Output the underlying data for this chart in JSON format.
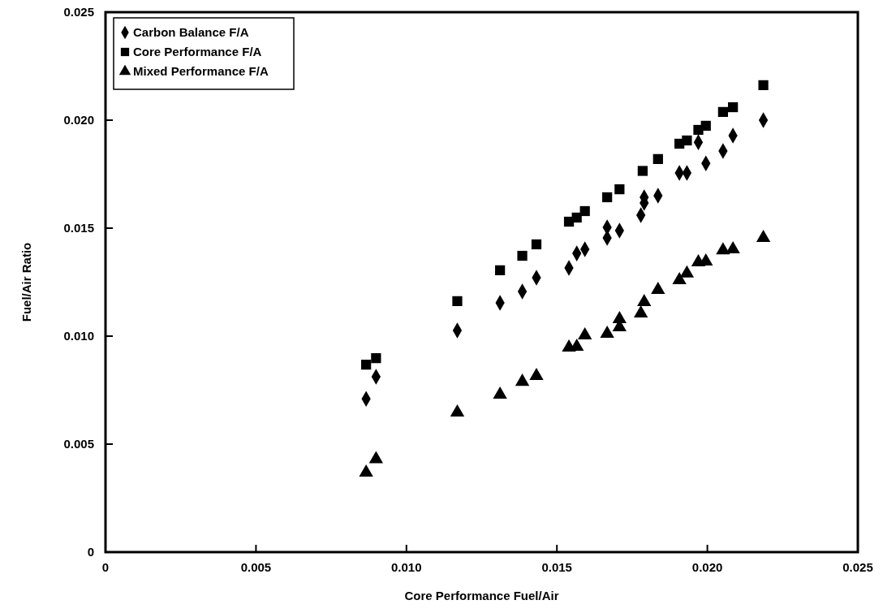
{
  "chart_data": {
    "type": "scatter",
    "xlabel": "Core Performance Fuel/Air",
    "ylabel": "Fuel/Air Ratio",
    "xlim": [
      0,
      0.025
    ],
    "ylim": [
      0,
      0.025
    ],
    "xticks": [
      0,
      {
        "value": 0.005,
        "label": "0.005"
      },
      {
        "value": 0.01,
        "label": "0.010"
      },
      {
        "value": 0.015,
        "label": "0.015"
      },
      {
        "value": 0.02,
        "label": "0.020"
      },
      {
        "value": 0.025,
        "label": "0.025"
      }
    ],
    "yticks": [
      0,
      {
        "value": 0.005,
        "label": "0.005"
      },
      {
        "value": 0.01,
        "label": "0.010"
      },
      {
        "value": 0.015,
        "label": "0.015"
      },
      {
        "value": 0.02,
        "label": "0.020"
      },
      {
        "value": 0.025,
        "label": "0.025"
      }
    ],
    "grid": false,
    "legend": "top left",
    "series": [
      {
        "name": "Carbon Balance F/A",
        "color": "#000000",
        "marker": "diamond",
        "x": [
          0.00866,
          0.00899,
          0.01169,
          0.01311,
          0.01385,
          0.01432,
          0.0154,
          0.01566,
          0.01593,
          0.01667,
          0.01667,
          0.01708,
          0.01779,
          0.0179,
          0.0179,
          0.01836,
          0.01907,
          0.01932,
          0.0197,
          0.01995,
          0.02052,
          0.02085,
          0.02186
        ],
        "values": [
          0.0071,
          0.00812,
          0.01026,
          0.01154,
          0.01207,
          0.01271,
          0.01316,
          0.01383,
          0.01402,
          0.01504,
          0.01455,
          0.01489,
          0.0156,
          0.01643,
          0.01617,
          0.0165,
          0.01756,
          0.01756,
          0.01898,
          0.018,
          0.01857,
          0.01929,
          0.02
        ]
      },
      {
        "name": "Core Performance F/A",
        "color": "#000000",
        "marker": "square",
        "x": [
          0.00866,
          0.00899,
          0.01169,
          0.01311,
          0.01385,
          0.01432,
          0.0154,
          0.01566,
          0.01593,
          0.01667,
          0.01708,
          0.01785,
          0.01836,
          0.01907,
          0.01932,
          0.0197,
          0.01995,
          0.02052,
          0.02085,
          0.02186
        ],
        "values": [
          0.00868,
          0.00898,
          0.01162,
          0.01305,
          0.01372,
          0.01425,
          0.0153,
          0.01549,
          0.01579,
          0.01643,
          0.0168,
          0.01765,
          0.0182,
          0.01891,
          0.01906,
          0.01955,
          0.01974,
          0.02038,
          0.0206,
          0.02162
        ]
      },
      {
        "name": "Mixed Performance F/A",
        "color": "#000000",
        "marker": "triangle",
        "x": [
          0.00866,
          0.00899,
          0.01169,
          0.01311,
          0.01385,
          0.01432,
          0.0154,
          0.01566,
          0.01593,
          0.01667,
          0.01708,
          0.01708,
          0.01779,
          0.0179,
          0.01836,
          0.01907,
          0.01932,
          0.0197,
          0.01995,
          0.02052,
          0.02085,
          0.02186
        ],
        "values": [
          0.00368,
          0.0043,
          0.00647,
          0.00729,
          0.00789,
          0.00816,
          0.00947,
          0.00951,
          0.01004,
          0.01011,
          0.01041,
          0.01079,
          0.01105,
          0.01158,
          0.01214,
          0.01259,
          0.0129,
          0.01342,
          0.01346,
          0.01398,
          0.01402,
          0.01455
        ]
      }
    ]
  }
}
